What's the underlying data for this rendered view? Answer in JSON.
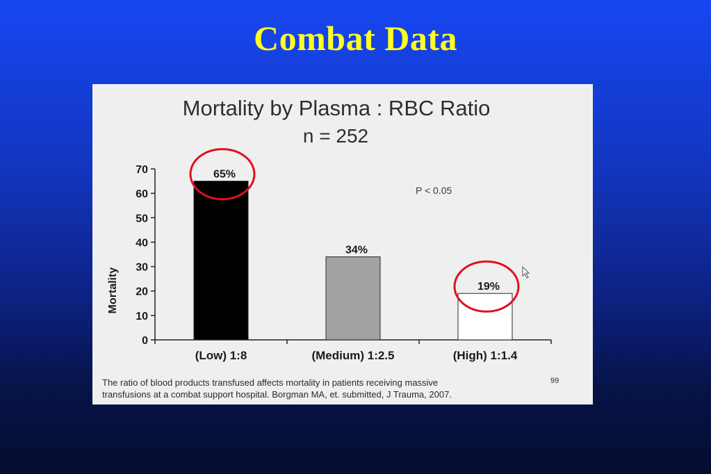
{
  "slide": {
    "title": "Combat Data"
  },
  "chart_data": {
    "type": "bar",
    "title": "Mortality by Plasma : RBC Ratio",
    "subtitle": "n = 252",
    "ylabel": "Mortality",
    "xlabel": "",
    "ylim": [
      0,
      70
    ],
    "yticks": [
      0,
      10,
      20,
      30,
      40,
      50,
      60,
      70
    ],
    "categories": [
      "(Low) 1:8",
      "(Medium) 1:2.5",
      "(High) 1:1.4"
    ],
    "values": [
      65,
      34,
      19
    ],
    "data_labels": [
      "65%",
      "34%",
      "19%"
    ],
    "bar_colors": [
      "#000000",
      "#a3a3a3",
      "#ffffff"
    ],
    "highlighted": [
      "(Low) 1:8",
      "(High) 1:1.4"
    ],
    "highlight_color": "#e01020",
    "annotation": "P < 0.05",
    "grid": false
  },
  "caption": {
    "line1": "The ratio of blood products transfused affects mortality in patients receiving massive",
    "line2": "transfusions at a combat support hospital. Borgman MA, et. submitted, J Trauma, 2007.",
    "page": "99"
  }
}
